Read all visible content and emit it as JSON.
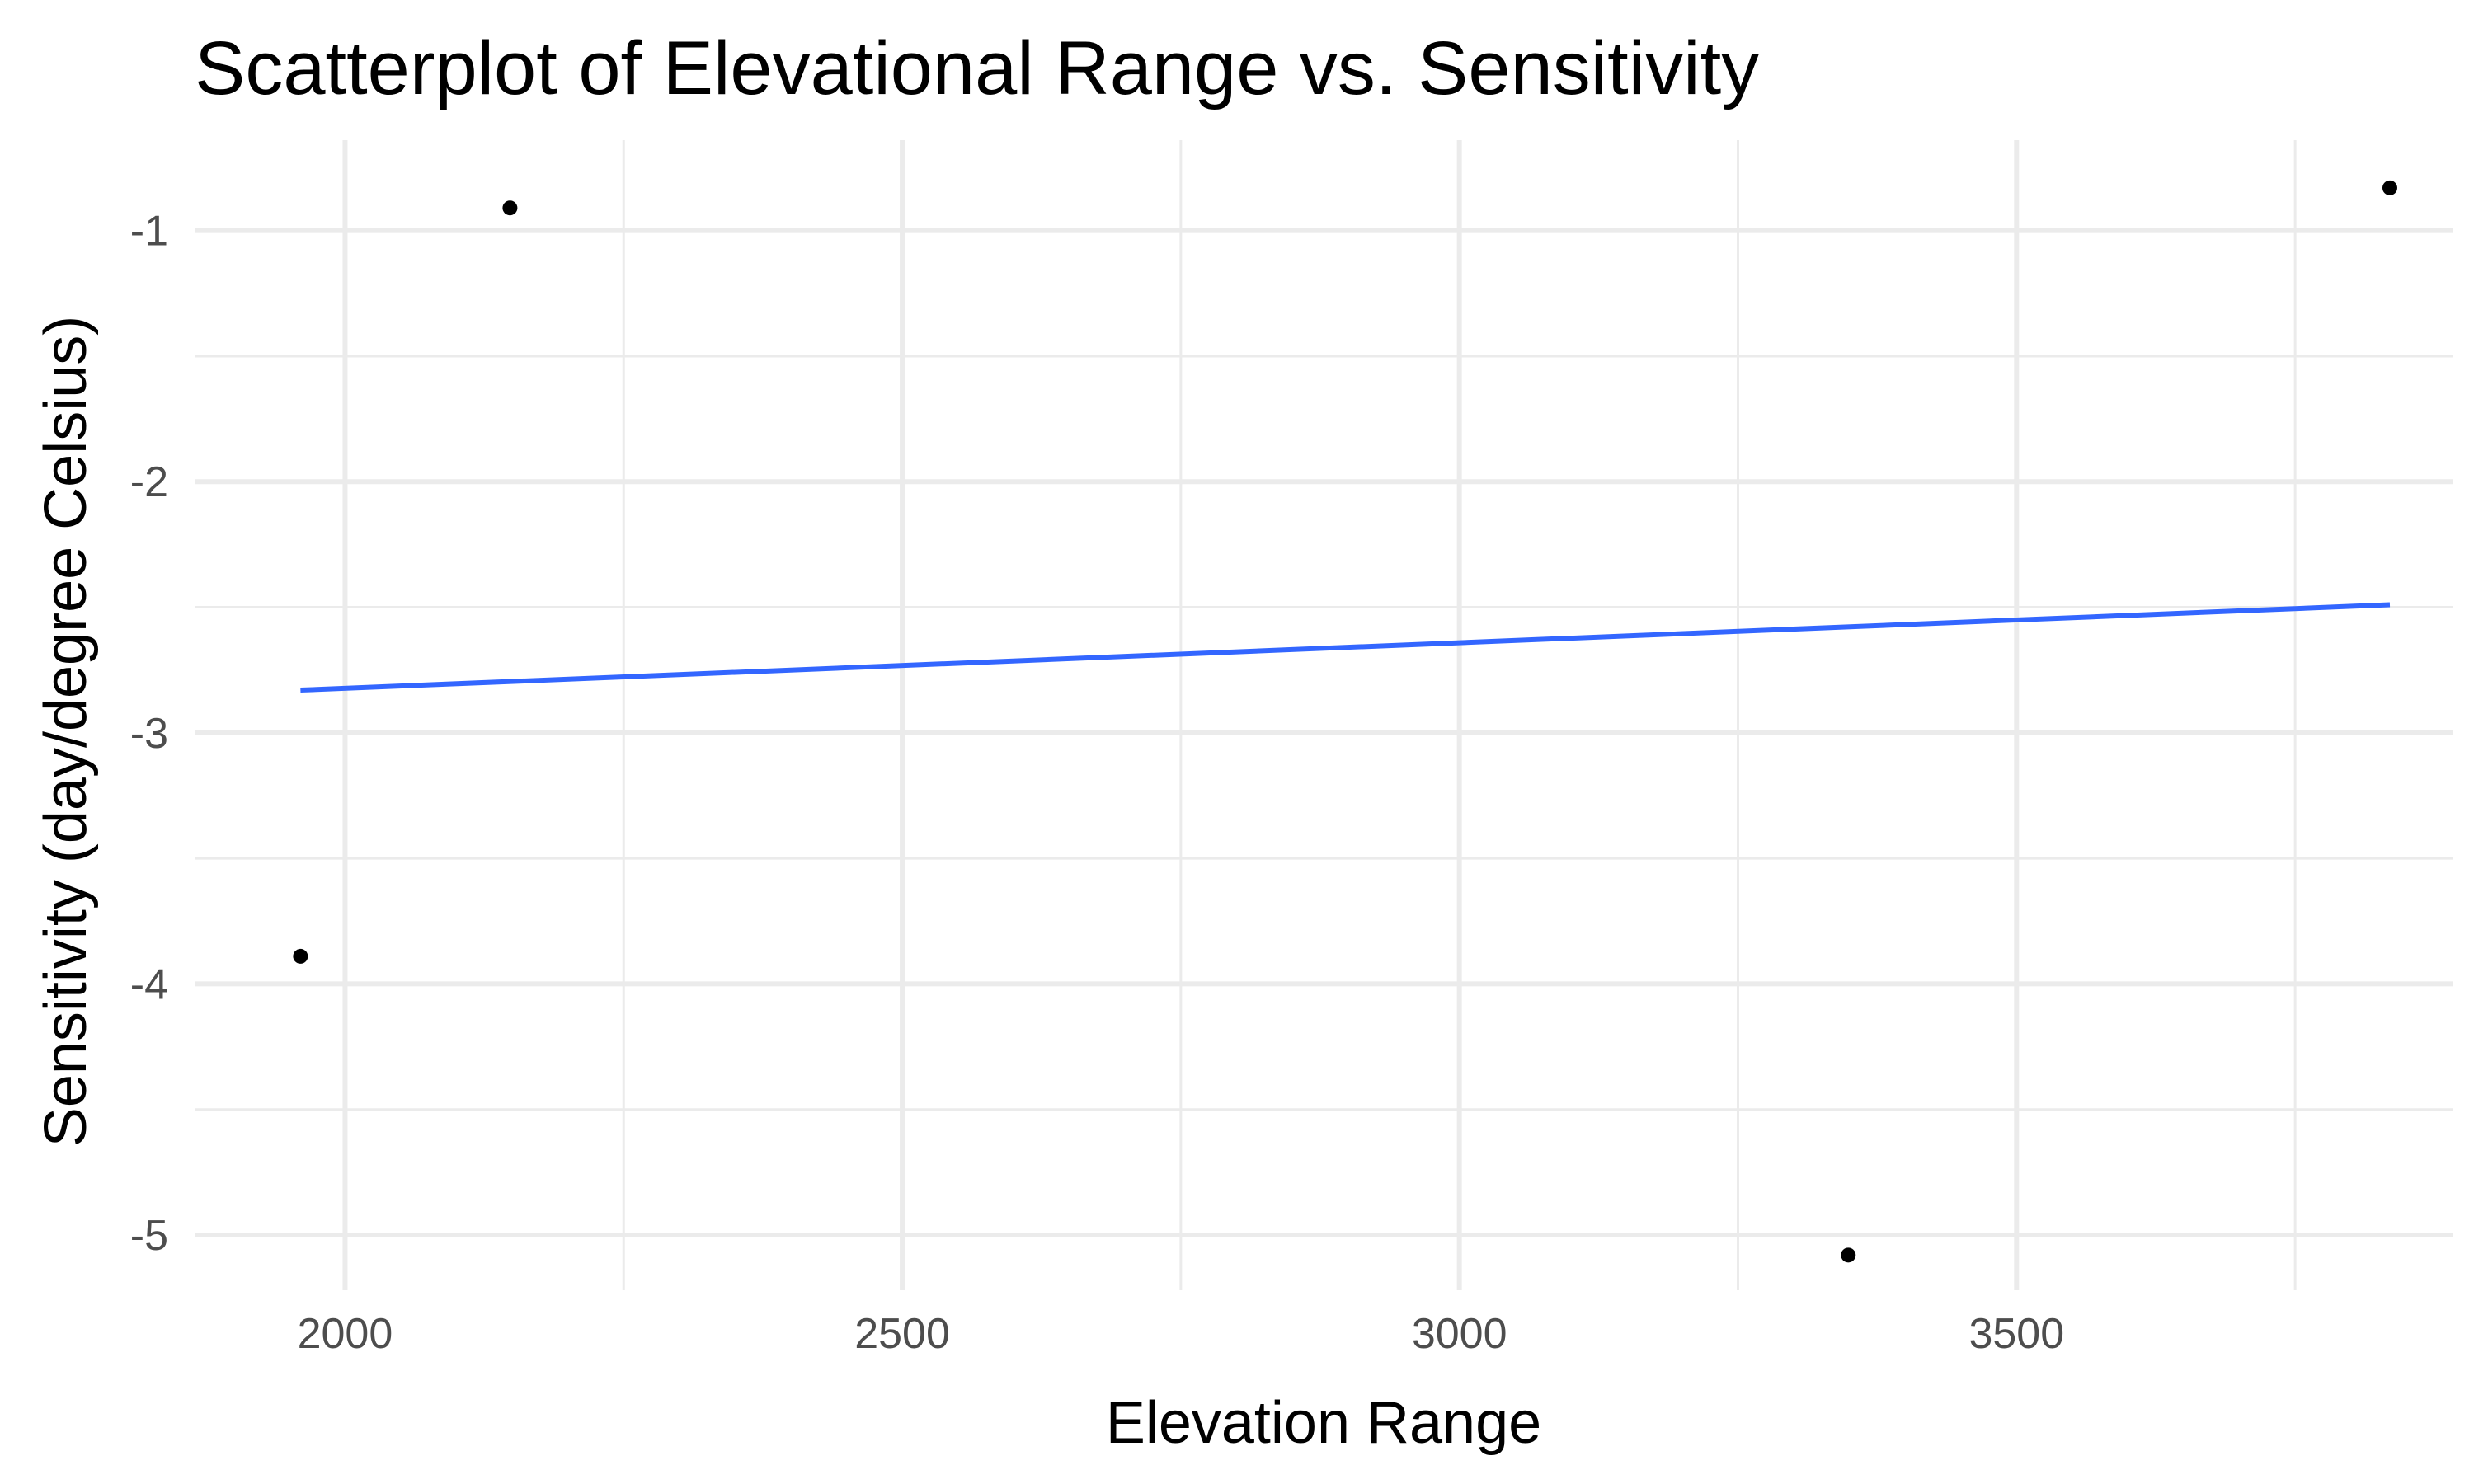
{
  "chart_data": {
    "type": "scatter",
    "title": "Scatterplot of Elevational Range vs. Sensitivity",
    "xlabel": "Elevation Range",
    "ylabel": "Sensitivity (day/degree Celsius)",
    "xlim": [
      1865,
      3892
    ],
    "ylim": [
      -5.22,
      -0.64
    ],
    "x_major_ticks": [
      2000,
      2500,
      3000,
      3500
    ],
    "x_tick_labels": [
      "2000",
      "2500",
      "3000",
      "3500"
    ],
    "x_minor_ticks": [
      2250,
      2750,
      3250,
      3750
    ],
    "y_major_ticks": [
      -5,
      -4,
      -3,
      -2,
      -1
    ],
    "y_tick_labels": [
      "-5",
      "-4",
      "-3",
      "-2",
      "-1"
    ],
    "y_minor_ticks": [
      -4.5,
      -3.5,
      -2.5,
      -1.5
    ],
    "grid": true,
    "legend": "none",
    "point_color": "#000000",
    "trend_color": "#3366ff",
    "series": [
      {
        "points": [
          {
            "x": 1960,
            "y": -3.89
          },
          {
            "x": 2148,
            "y": -0.91
          },
          {
            "x": 3349,
            "y": -5.08
          },
          {
            "x": 3835,
            "y": -0.83
          }
        ]
      }
    ],
    "trend_line": {
      "x": [
        1960,
        3835
      ],
      "y": [
        -2.83,
        -2.49
      ]
    }
  }
}
